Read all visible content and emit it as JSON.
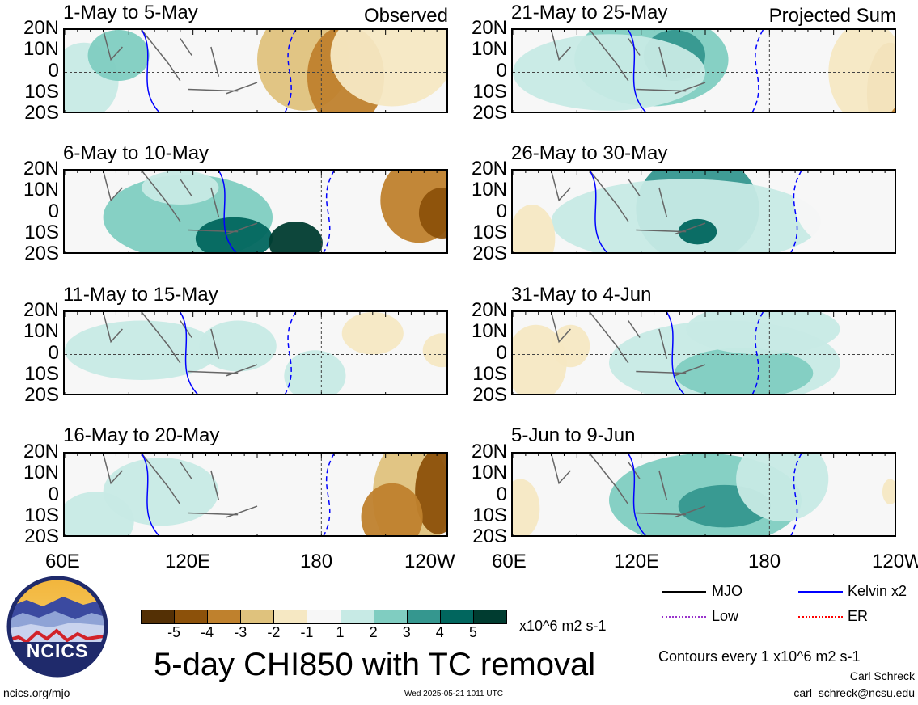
{
  "panels": [
    {
      "title": "1-May to 5-May",
      "label": "Observed"
    },
    {
      "title": "21-May to 25-May",
      "label": "Projected Sum"
    },
    {
      "title": "6-May to 10-May",
      "label": ""
    },
    {
      "title": "26-May to 30-May",
      "label": ""
    },
    {
      "title": "11-May to 15-May",
      "label": ""
    },
    {
      "title": "31-May to 4-Jun",
      "label": ""
    },
    {
      "title": "16-May to 20-May",
      "label": ""
    },
    {
      "title": "5-Jun to 9-Jun",
      "label": ""
    }
  ],
  "y_ticks": [
    "20N",
    "10N",
    "0",
    "10S",
    "20S"
  ],
  "x_ticks": [
    "60E",
    "120E",
    "180",
    "120W"
  ],
  "x_ticks_right": [
    "60E",
    "120E",
    "180",
    "120W"
  ],
  "colorbar": {
    "labels": [
      "-5",
      "-4",
      "-3",
      "-2",
      "-1",
      "1",
      "2",
      "3",
      "4",
      "5"
    ],
    "colors": [
      "#543005",
      "#8c510a",
      "#bf812d",
      "#dfc27d",
      "#f6e8c3",
      "#f7f7f7",
      "#c7eae5",
      "#80cdc1",
      "#35978f",
      "#01665e",
      "#003c30"
    ],
    "units": "x10^6 m2 s-1"
  },
  "legend": {
    "items": [
      {
        "label": "MJO",
        "color": "#000000"
      },
      {
        "label": "Kelvin x2",
        "color": "#0000ff"
      },
      {
        "label": "Low",
        "color": "#9933cc"
      },
      {
        "label": "ER",
        "color": "#ff0000"
      }
    ],
    "contours": "Contours every 1 x10^6 m2 s-1",
    "author": "Carl Schreck",
    "email": "carl_schreck@ncsu.edu"
  },
  "main_title": "5-day CHI850 with TC removal",
  "logo_text": "NCICS",
  "url": "ncics.org/mjo",
  "timestamp": "Wed 2025-05-21 1011 UTC"
}
